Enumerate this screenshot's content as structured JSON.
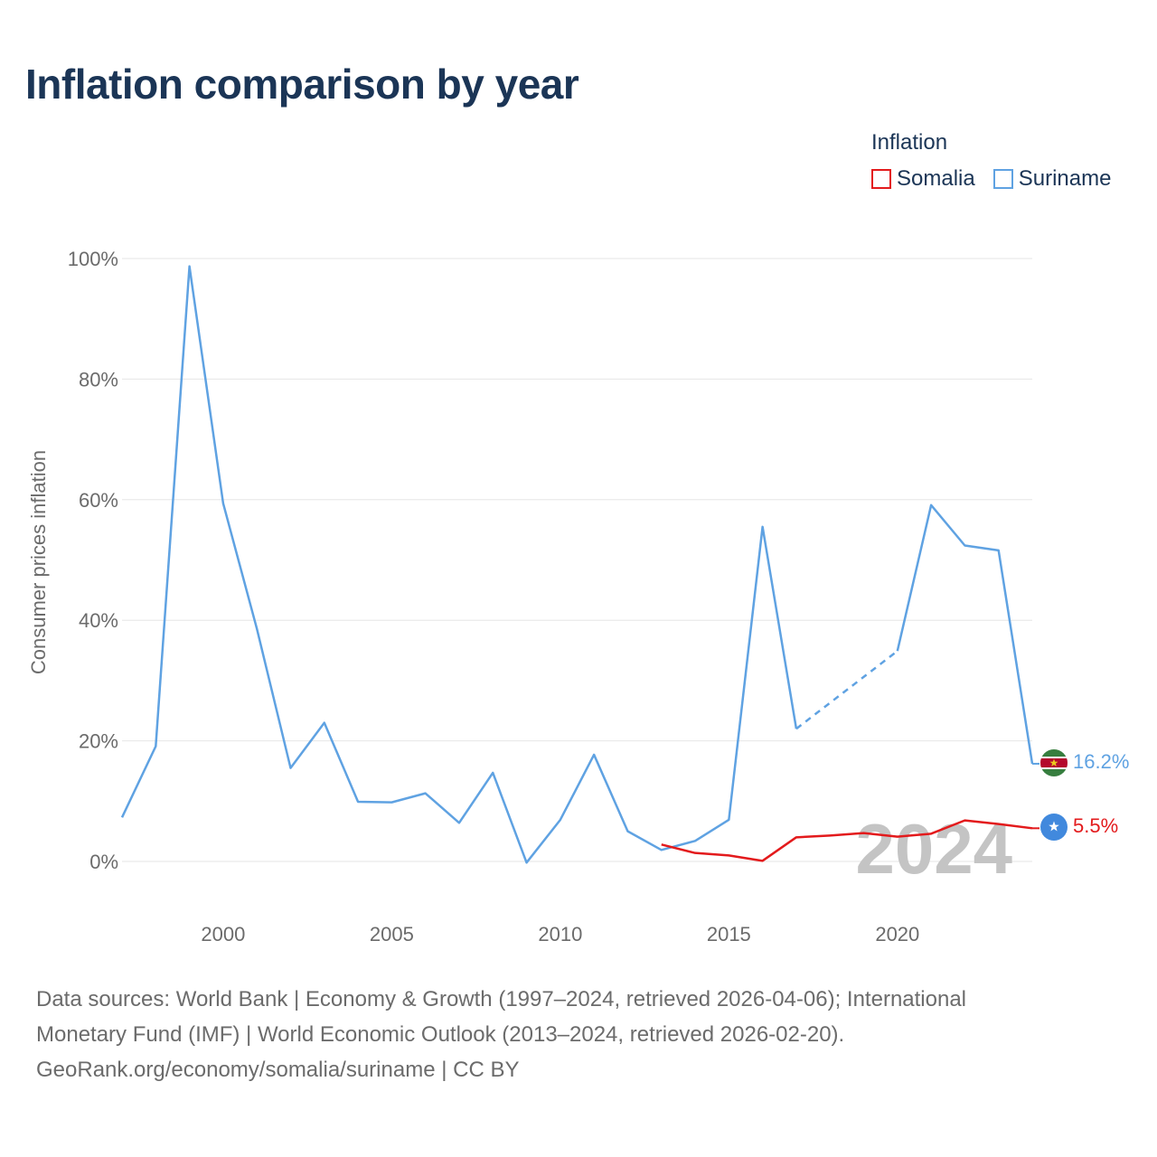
{
  "title": "Inflation comparison by year",
  "legend": {
    "title": "Inflation",
    "items": [
      {
        "label": "Somalia",
        "color": "#e31a1c"
      },
      {
        "label": "Suriname",
        "color": "#5fa2e2"
      }
    ]
  },
  "chart_data": {
    "type": "line",
    "title": "Inflation comparison by year",
    "xlabel": "",
    "ylabel": "Consumer prices inflation",
    "xlim": [
      1997,
      2024
    ],
    "ylim": [
      -8,
      100
    ],
    "grid": true,
    "legend_position": "top-right",
    "x_ticks": [
      2000,
      2005,
      2010,
      2015,
      2020
    ],
    "x_tick_labels": [
      "2000",
      "2005",
      "2010",
      "2015",
      "2020"
    ],
    "y_ticks": [
      0,
      20,
      40,
      60,
      80,
      100
    ],
    "y_tick_labels": [
      "0%",
      "20%",
      "40%",
      "60%",
      "80%",
      "100%"
    ],
    "year_label": "2024",
    "series": [
      {
        "name": "Suriname",
        "color": "#5fa2e2",
        "end_label": "16.2%",
        "flag": "suriname-flag",
        "points": [
          [
            1997,
            7.3
          ],
          [
            1998,
            19.1
          ],
          [
            1999,
            98.7
          ],
          [
            2000,
            59.4
          ],
          [
            2001,
            38.6
          ],
          [
            2002,
            15.5
          ],
          [
            2003,
            23.0
          ],
          [
            2004,
            9.9
          ],
          [
            2005,
            9.8
          ],
          [
            2006,
            11.3
          ],
          [
            2007,
            6.4
          ],
          [
            2008,
            14.7
          ],
          [
            2009,
            -0.2
          ],
          [
            2010,
            6.9
          ],
          [
            2011,
            17.7
          ],
          [
            2012,
            5.0
          ],
          [
            2013,
            1.9
          ],
          [
            2014,
            3.4
          ],
          [
            2015,
            6.9
          ],
          [
            2016,
            55.5
          ],
          [
            2017,
            22.0
          ],
          [
            2020,
            34.9
          ],
          [
            2021,
            59.1
          ],
          [
            2022,
            52.4
          ],
          [
            2023,
            51.6
          ],
          [
            2024,
            16.2
          ]
        ],
        "dashed_segments": [
          [
            2017,
            2020
          ]
        ]
      },
      {
        "name": "Somalia",
        "color": "#e31a1c",
        "end_label": "5.5%",
        "flag": "somalia-flag",
        "points": [
          [
            2013,
            2.8
          ],
          [
            2014,
            1.4
          ],
          [
            2015,
            1.0
          ],
          [
            2016,
            0.1
          ],
          [
            2017,
            4.0
          ],
          [
            2018,
            4.3
          ],
          [
            2019,
            4.7
          ],
          [
            2020,
            4.1
          ],
          [
            2021,
            4.6
          ],
          [
            2022,
            6.8
          ],
          [
            2023,
            6.2
          ],
          [
            2024,
            5.5
          ]
        ],
        "dashed_segments": []
      }
    ]
  },
  "source": {
    "line1": "Data sources: World Bank | Economy & Growth (1997–2024, retrieved 2026-04-06); International",
    "line2": "Monetary Fund (IMF) | World Economic Outlook (2013–2024, retrieved 2026-02-20).",
    "line3": "GeoRank.org/economy/somalia/suriname | CC BY"
  }
}
